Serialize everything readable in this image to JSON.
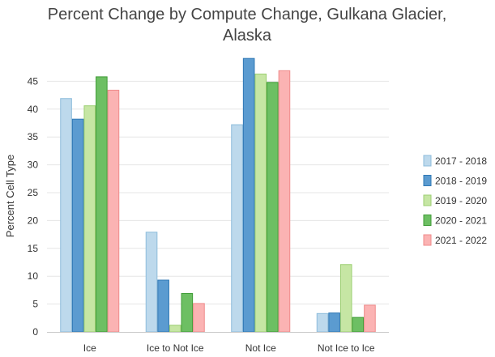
{
  "chart_data": {
    "type": "bar",
    "title_lines": [
      "Percent Change by Compute Change, Gulkana Glacier,",
      "Alaska"
    ],
    "xlabel": "",
    "ylabel": "Percent Cell Type",
    "ylim": [
      0,
      50
    ],
    "yticks": [
      0,
      5,
      10,
      15,
      20,
      25,
      30,
      35,
      40,
      45
    ],
    "grid": true,
    "legend_position": "right",
    "categories": [
      "Ice",
      "Ice to Not Ice",
      "Not Ice",
      "Not Ice to Ice"
    ],
    "series": [
      {
        "name": "2017 - 2018",
        "fill": "#bdd9ec",
        "stroke": "#8dbcdb",
        "values": [
          41.9,
          17.9,
          37.2,
          3.3
        ]
      },
      {
        "name": "2018 - 2019",
        "fill": "#5b9bd0",
        "stroke": "#2f78b5",
        "values": [
          38.2,
          9.3,
          49.1,
          3.4
        ]
      },
      {
        "name": "2019 - 2020",
        "fill": "#c6e6a4",
        "stroke": "#9ccf72",
        "values": [
          40.6,
          1.2,
          46.3,
          12.1
        ]
      },
      {
        "name": "2020 - 2021",
        "fill": "#6dbf63",
        "stroke": "#3f9b36",
        "values": [
          45.8,
          6.9,
          44.8,
          2.6
        ]
      },
      {
        "name": "2021 - 2022",
        "fill": "#fbb3b3",
        "stroke": "#ef8b8b",
        "values": [
          43.4,
          5.1,
          46.9,
          4.8
        ]
      }
    ]
  }
}
